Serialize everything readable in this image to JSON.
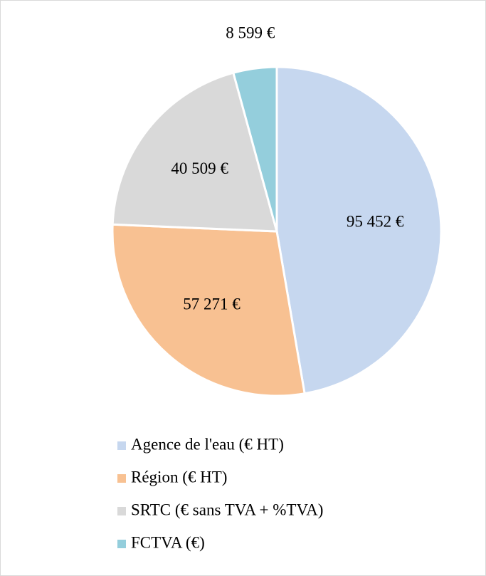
{
  "chart_data": {
    "type": "pie",
    "categories": [
      "Agence de l'eau (€ HT)",
      "Région (€ HT)",
      "SRTC (€ sans TVA + %TVA)",
      "FCTVA (€)"
    ],
    "values": [
      95452,
      57271,
      40509,
      8599
    ],
    "value_labels": [
      "95 452 €",
      "57 271 €",
      "40 509 €",
      "8 599 €"
    ],
    "colors": [
      "#c6d7ef",
      "#f8c192",
      "#d9d9d9",
      "#94cedc"
    ],
    "legend": "bottom"
  }
}
